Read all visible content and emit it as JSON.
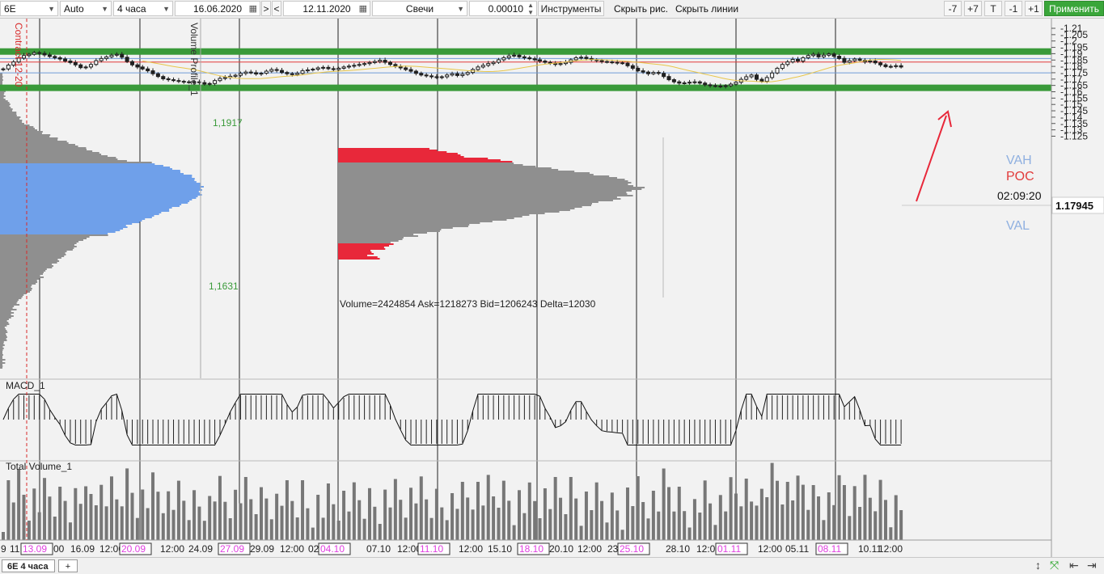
{
  "toolbar": {
    "symbol": "6E",
    "scale_mode": "Auto",
    "timeframe": "4 часа",
    "date_from": "16.06.2020",
    "nav_next": ">",
    "nav_prev": "<",
    "date_to": "12.11.2020",
    "chart_style": "Свечи",
    "tick_size": "0.00010",
    "instruments": "Инструменты",
    "hide_drawings": "Скрыть рис.",
    "hide_lines": "Скрыть линии",
    "minus7": "-7",
    "plus7": "+7",
    "t": "T",
    "minus1": "-1",
    "plus1": "+1",
    "apply": "Применить"
  },
  "bottom": {
    "tab_label": "6E 4 часа",
    "add_tab": "+"
  },
  "colors": {
    "green_level": "#3a9a3a",
    "vah": "#6f9bd8",
    "poc": "#e23b3b",
    "val": "#6f9bd8",
    "profile_blue": "#6fa0ea",
    "profile_gray": "#8f8f8f",
    "profile_red": "#e8283a",
    "ma": "#e8c64a",
    "candle": "#202020",
    "arrow": "#e8283a",
    "date_highlight": "#e040e0"
  },
  "chart_data": {
    "type": "candlestick",
    "symbol": "6E",
    "timeframe": "4 часа",
    "y_axis": {
      "ticks": [
        "1.21",
        "1.205",
        "1.2",
        "1.195",
        "1.19",
        "1.185",
        "1.18",
        "1.175",
        "1.17",
        "1.165",
        "1.16",
        "1.155",
        "1.15",
        "1.145",
        "1.14",
        "1.135",
        "1.13",
        "1.125"
      ],
      "current_price": "1.17945",
      "countdown": "02:09:20"
    },
    "x_axis": {
      "labels": [
        "9",
        "11",
        "13.09",
        "00",
        "16.09",
        "12:00",
        "20.09",
        "12:00",
        "24.09",
        "27.09",
        "29.09",
        "12:00",
        "02",
        "04.10",
        "07.10",
        "12:00",
        "11.10",
        "12:00",
        "15.10",
        "18.10",
        "20.10",
        "12:00",
        "23",
        "25.10",
        "28.10",
        "12:00",
        "01.11",
        "12:00",
        "05.11",
        "08.11",
        "10.11",
        "12:00"
      ],
      "highlighted": [
        "13.09",
        "20.09",
        "27.09",
        "04.10",
        "11.10",
        "18.10",
        "25.10",
        "01.11",
        "08.11"
      ]
    },
    "levels": [
      {
        "name": "",
        "price": 1.1917,
        "color": "green"
      },
      {
        "name": "",
        "price": 1.1631,
        "color": "green"
      },
      {
        "name": "VAH",
        "price": 1.1862
      },
      {
        "name": "POC",
        "price": 1.1834
      },
      {
        "name": "VAL",
        "price": 1.1749
      }
    ],
    "annotations": {
      "level_high": "1,1917",
      "level_low": "1,1631",
      "volume_stats": "Volume=2424854  Ask=1218273  Bid=1206243  Delta=12030",
      "contract_label": "Contract 12-20",
      "profile_label": "Volume Profile_1"
    },
    "panels": [
      {
        "name": "MACD_1"
      },
      {
        "name": "Total Volume_1"
      }
    ],
    "closes": [
      1.178,
      1.181,
      1.1835,
      1.1865,
      1.1885,
      1.1895,
      1.1908,
      1.1902,
      1.189,
      1.1878,
      1.1868,
      1.1858,
      1.1842,
      1.183,
      1.1812,
      1.179,
      1.1795,
      1.1815,
      1.1845,
      1.1862,
      1.1875,
      1.1888,
      1.1895,
      1.1872,
      1.1838,
      1.1812,
      1.1795,
      1.178,
      1.1765,
      1.1742,
      1.172,
      1.1702,
      1.1695,
      1.1688,
      1.1682,
      1.1678,
      1.1675,
      1.1678,
      1.1672,
      1.166,
      1.1665,
      1.1688,
      1.1705,
      1.1712,
      1.1722,
      1.173,
      1.1745,
      1.1755,
      1.175,
      1.174,
      1.1746,
      1.1762,
      1.1775,
      1.1768,
      1.1752,
      1.1742,
      1.1735,
      1.1745,
      1.1765,
      1.1772,
      1.1778,
      1.1788,
      1.1792,
      1.1782,
      1.1775,
      1.1785,
      1.1795,
      1.1802,
      1.1808,
      1.1815,
      1.1822,
      1.183,
      1.1838,
      1.1848,
      1.1832,
      1.1815,
      1.18,
      1.1788,
      1.1775,
      1.1762,
      1.1745,
      1.1732,
      1.1725,
      1.1718,
      1.1712,
      1.1718,
      1.1732,
      1.1742,
      1.1728,
      1.1738,
      1.1752,
      1.1775,
      1.1795,
      1.1808,
      1.1822,
      1.1832,
      1.1852,
      1.1868,
      1.1882,
      1.1888,
      1.1875,
      1.1868,
      1.186,
      1.1852,
      1.1842,
      1.1832,
      1.1825,
      1.1815,
      1.1822,
      1.1832,
      1.1852,
      1.1868,
      1.1872,
      1.1862,
      1.1852,
      1.1845,
      1.1838,
      1.1835,
      1.1832,
      1.1828,
      1.1825,
      1.1805,
      1.1785,
      1.1765,
      1.1755,
      1.1742,
      1.1752,
      1.1745,
      1.172,
      1.1695,
      1.1678,
      1.1668,
      1.167,
      1.1675,
      1.1678,
      1.1668,
      1.1655,
      1.1648,
      1.1645,
      1.1642,
      1.1648,
      1.166,
      1.1675,
      1.1698,
      1.1718,
      1.1732,
      1.1698,
      1.1682,
      1.1712,
      1.1748,
      1.1785,
      1.1815,
      1.1835,
      1.1855,
      1.1842,
      1.1868,
      1.1885,
      1.1895,
      1.1875,
      1.1888,
      1.1898,
      1.188,
      1.1862,
      1.1832,
      1.1845,
      1.1858,
      1.1848,
      1.1835,
      1.1842,
      1.1828,
      1.1812,
      1.1798,
      1.18,
      1.1805,
      1.1795
    ]
  }
}
